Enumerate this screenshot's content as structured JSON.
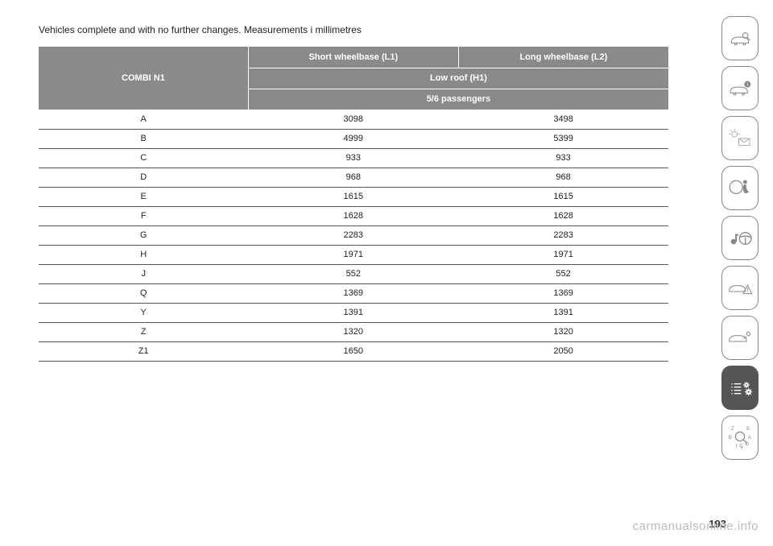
{
  "lead_text": "Vehicles complete and with no further changes. Measurements i millimetres",
  "table": {
    "row_label_header": "COMBI N1",
    "col_group_1": "Short wheelbase (L1)",
    "col_group_2": "Long wheelbase (L2)",
    "sub_header_1": "Low roof (H1)",
    "sub_header_2": "5/6 passengers",
    "rows": [
      {
        "label": "A",
        "c1": "3098",
        "c2": "3498"
      },
      {
        "label": "B",
        "c1": "4999",
        "c2": "5399"
      },
      {
        "label": "C",
        "c1": "933",
        "c2": "933"
      },
      {
        "label": "D",
        "c1": "968",
        "c2": "968"
      },
      {
        "label": "E",
        "c1": "1615",
        "c2": "1615"
      },
      {
        "label": "F",
        "c1": "1628",
        "c2": "1628"
      },
      {
        "label": "G",
        "c1": "2283",
        "c2": "2283"
      },
      {
        "label": "H",
        "c1": "1971",
        "c2": "1971"
      },
      {
        "label": "J",
        "c1": "552",
        "c2": "552"
      },
      {
        "label": "Q",
        "c1": "1369",
        "c2": "1369"
      },
      {
        "label": "Y",
        "c1": "1391",
        "c2": "1391"
      },
      {
        "label": "Z",
        "c1": "1320",
        "c2": "1320"
      },
      {
        "label": "Z1",
        "c1": "1650",
        "c2": "2050"
      }
    ]
  },
  "rail": {
    "active_index": 7
  },
  "page_number": "193",
  "watermark": "carmanualsonline.info"
}
